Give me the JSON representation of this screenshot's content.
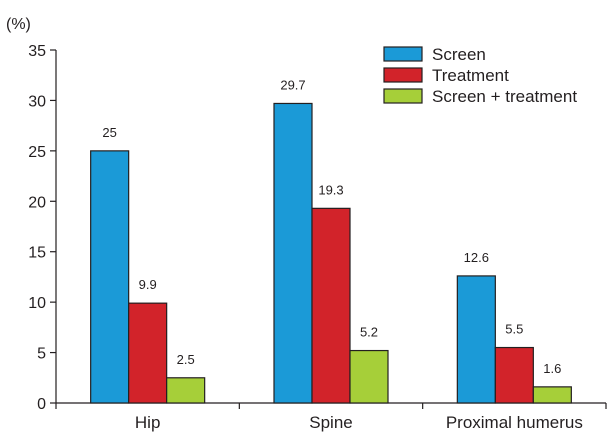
{
  "chart_data": {
    "type": "bar",
    "title": "",
    "xlabel": "",
    "ylabel": "(%)",
    "ylim": [
      0,
      35
    ],
    "yticks": [
      0,
      5,
      10,
      15,
      20,
      25,
      30,
      35
    ],
    "grid": false,
    "legend_position": "top-right",
    "categories": [
      "Hip",
      "Spine",
      "Proximal humerus"
    ],
    "series": [
      {
        "name": "Screen",
        "color": "#1b9ad7",
        "values": [
          25,
          29.7,
          12.6
        ],
        "labels": [
          "25",
          "29.7",
          "12.6"
        ]
      },
      {
        "name": "Treatment",
        "color": "#d2232a",
        "values": [
          9.9,
          19.3,
          5.5
        ],
        "labels": [
          "9.9",
          "19.3",
          "5.5"
        ]
      },
      {
        "name": "Screen + treatment",
        "color": "#a6cf39",
        "values": [
          2.5,
          5.2,
          1.6
        ],
        "labels": [
          "2.5",
          "5.2",
          "1.6"
        ]
      }
    ]
  }
}
